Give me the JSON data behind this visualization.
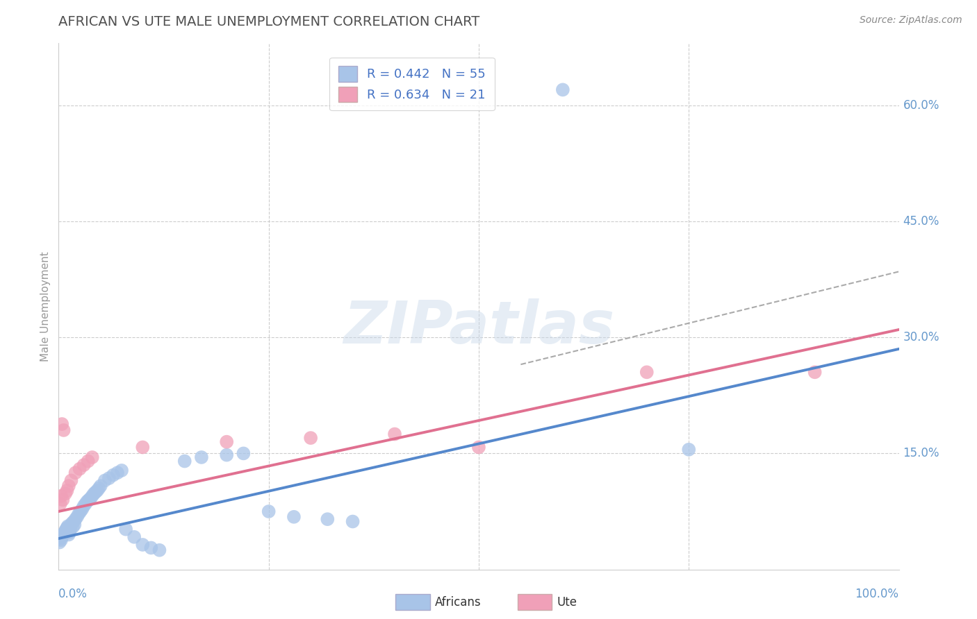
{
  "title": "AFRICAN VS UTE MALE UNEMPLOYMENT CORRELATION CHART",
  "source": "Source: ZipAtlas.com",
  "ylabel": "Male Unemployment",
  "xlim": [
    0,
    1.0
  ],
  "ylim": [
    0.0,
    0.68
  ],
  "yticks": [
    0.15,
    0.3,
    0.45,
    0.6
  ],
  "ytick_labels": [
    "15.0%",
    "30.0%",
    "45.0%",
    "60.0%"
  ],
  "grid_color": "#cccccc",
  "background_color": "#ffffff",
  "african_color": "#a8c4e8",
  "ute_color": "#f0a0b8",
  "african_line_color": "#5588cc",
  "ute_line_color": "#e07090",
  "dash_line_color": "#aaaaaa",
  "african_R": 0.442,
  "african_N": 55,
  "ute_R": 0.634,
  "ute_N": 21,
  "legend_R_color": "#4472c4",
  "title_color": "#505050",
  "watermark": "ZIPatlas",
  "african_line_x0": 0.0,
  "african_line_y0": 0.04,
  "african_line_x1": 1.0,
  "african_line_y1": 0.285,
  "ute_line_x0": 0.0,
  "ute_line_y0": 0.075,
  "ute_line_x1": 1.0,
  "ute_line_y1": 0.31,
  "dash_line_x0": 0.55,
  "dash_line_y0": 0.265,
  "dash_line_x1": 1.0,
  "dash_line_y1": 0.385,
  "african_scatter": [
    [
      0.001,
      0.035
    ],
    [
      0.002,
      0.04
    ],
    [
      0.003,
      0.038
    ],
    [
      0.004,
      0.042
    ],
    [
      0.005,
      0.044
    ],
    [
      0.006,
      0.046
    ],
    [
      0.007,
      0.048
    ],
    [
      0.008,
      0.05
    ],
    [
      0.009,
      0.052
    ],
    [
      0.01,
      0.054
    ],
    [
      0.011,
      0.056
    ],
    [
      0.012,
      0.045
    ],
    [
      0.013,
      0.048
    ],
    [
      0.014,
      0.052
    ],
    [
      0.015,
      0.058
    ],
    [
      0.016,
      0.06
    ],
    [
      0.017,
      0.055
    ],
    [
      0.018,
      0.062
    ],
    [
      0.019,
      0.058
    ],
    [
      0.02,
      0.065
    ],
    [
      0.022,
      0.068
    ],
    [
      0.024,
      0.072
    ],
    [
      0.026,
      0.075
    ],
    [
      0.028,
      0.078
    ],
    [
      0.03,
      0.082
    ],
    [
      0.032,
      0.085
    ],
    [
      0.034,
      0.088
    ],
    [
      0.036,
      0.09
    ],
    [
      0.038,
      0.092
    ],
    [
      0.04,
      0.095
    ],
    [
      0.042,
      0.098
    ],
    [
      0.044,
      0.1
    ],
    [
      0.046,
      0.102
    ],
    [
      0.048,
      0.105
    ],
    [
      0.05,
      0.108
    ],
    [
      0.055,
      0.115
    ],
    [
      0.06,
      0.118
    ],
    [
      0.065,
      0.122
    ],
    [
      0.07,
      0.125
    ],
    [
      0.075,
      0.128
    ],
    [
      0.08,
      0.052
    ],
    [
      0.09,
      0.042
    ],
    [
      0.1,
      0.032
    ],
    [
      0.11,
      0.028
    ],
    [
      0.12,
      0.025
    ],
    [
      0.15,
      0.14
    ],
    [
      0.17,
      0.145
    ],
    [
      0.2,
      0.148
    ],
    [
      0.22,
      0.15
    ],
    [
      0.25,
      0.075
    ],
    [
      0.28,
      0.068
    ],
    [
      0.32,
      0.065
    ],
    [
      0.35,
      0.062
    ],
    [
      0.6,
      0.62
    ],
    [
      0.75,
      0.155
    ]
  ],
  "ute_scatter": [
    [
      0.002,
      0.085
    ],
    [
      0.003,
      0.095
    ],
    [
      0.004,
      0.188
    ],
    [
      0.005,
      0.09
    ],
    [
      0.006,
      0.18
    ],
    [
      0.008,
      0.098
    ],
    [
      0.01,
      0.102
    ],
    [
      0.012,
      0.108
    ],
    [
      0.015,
      0.115
    ],
    [
      0.02,
      0.125
    ],
    [
      0.025,
      0.13
    ],
    [
      0.03,
      0.135
    ],
    [
      0.035,
      0.14
    ],
    [
      0.04,
      0.145
    ],
    [
      0.1,
      0.158
    ],
    [
      0.2,
      0.165
    ],
    [
      0.3,
      0.17
    ],
    [
      0.4,
      0.175
    ],
    [
      0.5,
      0.158
    ],
    [
      0.7,
      0.255
    ],
    [
      0.9,
      0.255
    ]
  ]
}
